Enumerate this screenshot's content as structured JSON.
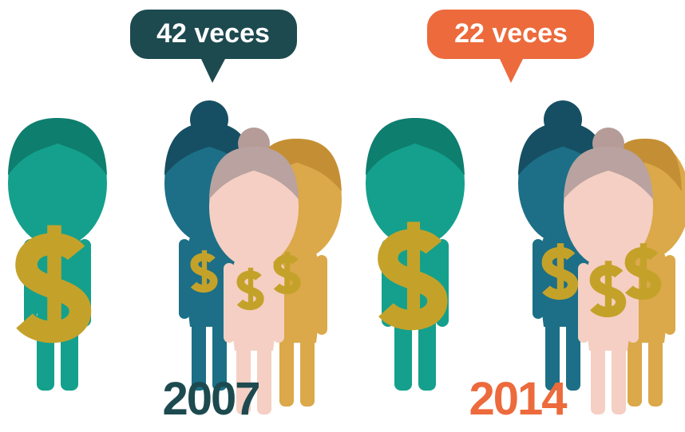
{
  "groups": [
    {
      "bubble": "42 veces",
      "year": "2007"
    },
    {
      "bubble": "22 veces",
      "year": "2014"
    }
  ]
}
